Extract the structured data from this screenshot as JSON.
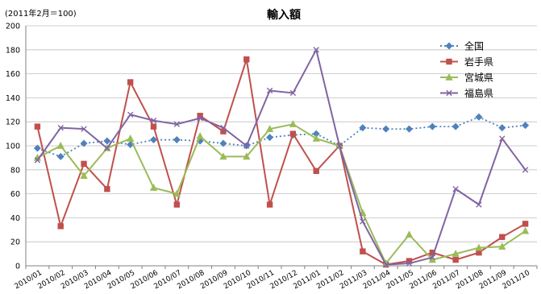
{
  "chart_data": {
    "type": "line",
    "title": "輸入額",
    "unit_note": "(2011年2月＝100)",
    "xlabel": "",
    "ylabel": "",
    "ylim": [
      0,
      200
    ],
    "y_ticks": [
      0,
      20,
      40,
      60,
      80,
      100,
      120,
      140,
      160,
      180,
      200
    ],
    "categories": [
      "2010/01",
      "2010/02",
      "2010/03",
      "2010/04",
      "2010/05",
      "2010/06",
      "2010/07",
      "2010/08",
      "2010/09",
      "2010/10",
      "2010/11",
      "2010/12",
      "2011/01",
      "2011/02",
      "2011/03",
      "2011/04",
      "2011/05",
      "2011/06",
      "2011/07",
      "2011/08",
      "2011/09",
      "2011/10"
    ],
    "grid": "horizontal",
    "legend_position": "right",
    "series": [
      {
        "name": "全国",
        "color": "#4F81BD",
        "marker": "diamond",
        "dash": "dotted",
        "values": [
          98,
          91,
          102,
          104,
          101,
          105,
          105,
          104,
          102,
          100,
          107,
          109,
          110,
          100,
          115,
          114,
          114,
          116,
          116,
          124,
          115,
          117
        ]
      },
      {
        "name": "岩手県",
        "color": "#C0504D",
        "marker": "square",
        "dash": "solid",
        "values": [
          116,
          33,
          85,
          64,
          153,
          116,
          51,
          125,
          112,
          172,
          51,
          110,
          79,
          100,
          12,
          1,
          4,
          11,
          5,
          11,
          24,
          35
        ]
      },
      {
        "name": "宮城県",
        "color": "#9BBB59",
        "marker": "triangle",
        "dash": "solid",
        "values": [
          90,
          100,
          75,
          98,
          106,
          65,
          60,
          108,
          91,
          91,
          114,
          118,
          106,
          100,
          44,
          2,
          26,
          5,
          10,
          15,
          16,
          29
        ]
      },
      {
        "name": "福島県",
        "color": "#8064A2",
        "marker": "x",
        "dash": "solid",
        "values": [
          88,
          115,
          114,
          98,
          126,
          121,
          118,
          123,
          115,
          100,
          146,
          144,
          180,
          100,
          37,
          1,
          2,
          7,
          64,
          51,
          106,
          80
        ]
      }
    ]
  }
}
